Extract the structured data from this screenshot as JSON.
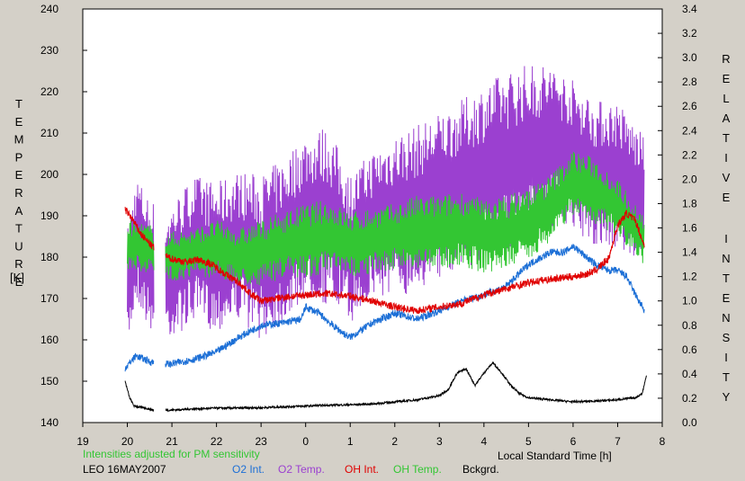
{
  "note": "Intensities adjusted for PM sensitivity",
  "station": "LEO 16MAY2007",
  "left_axis_title": "TEMPERATURE",
  "left_axis_unit": "[K]",
  "right_axis_title": "RELATIVE INTENSITY",
  "legend": [
    {
      "label": "O2 Int.",
      "color": "#1c6fd6"
    },
    {
      "label": "O2 Temp.",
      "color": "#9b40d0"
    },
    {
      "label": "OH Int.",
      "color": "#e00000"
    },
    {
      "label": "OH Temp.",
      "color": "#33c633"
    },
    {
      "label": "Bckgrd.",
      "color": "#000000"
    }
  ],
  "chart_data": {
    "type": "line",
    "xlabel": "Local Standard Time [h]",
    "x_tick_labels": [
      "19",
      "20",
      "21",
      "22",
      "23",
      "0",
      "1",
      "2",
      "3",
      "4",
      "5",
      "6",
      "7",
      "8"
    ],
    "xlim": [
      19,
      32
    ],
    "ylabel_left": "TEMPERATURE [K]",
    "ylim_left": [
      140,
      240
    ],
    "y_ticks_left": [
      140,
      150,
      160,
      170,
      180,
      190,
      200,
      210,
      220,
      230,
      240
    ],
    "ylabel_right": "RELATIVE INTENSITY",
    "ylim_right": [
      0.0,
      3.4
    ],
    "y_ticks_right": [
      "0.0",
      "0.2",
      "0.4",
      "0.6",
      "0.8",
      "1.0",
      "1.2",
      "1.4",
      "1.6",
      "1.8",
      "2.0",
      "2.2",
      "2.4",
      "2.6",
      "2.8",
      "3.0",
      "3.2",
      "3.4"
    ],
    "grid": false,
    "series": [
      {
        "name": "O2 Temp.",
        "axis": "left",
        "color": "#9b40d0",
        "x": [
          20.0,
          20.2,
          20.5,
          20.9,
          21.5,
          22.0,
          22.5,
          23.0,
          23.5,
          24.0,
          24.5,
          25.0,
          25.5,
          26.0,
          26.5,
          27.0,
          27.5,
          28.0,
          28.5,
          29.0,
          29.5,
          30.0,
          30.5,
          31.0,
          31.6
        ],
        "y": [
          172,
          185,
          178,
          176,
          182,
          180,
          183,
          180,
          184,
          190,
          190,
          182,
          188,
          190,
          192,
          195,
          198,
          200,
          203,
          205,
          207,
          205,
          200,
          200,
          193
        ],
        "amplitude": [
          15,
          15,
          16,
          16,
          18,
          18,
          18,
          20,
          20,
          20,
          22,
          18,
          18,
          20,
          20,
          20,
          20,
          22,
          22,
          22,
          20,
          18,
          18,
          18,
          16
        ]
      },
      {
        "name": "OH Temp.",
        "axis": "left",
        "color": "#33c633",
        "x": [
          20.0,
          20.5,
          20.9,
          21.5,
          22.0,
          22.5,
          23.0,
          23.5,
          24.0,
          24.5,
          25.0,
          25.5,
          26.0,
          26.5,
          27.0,
          27.5,
          28.0,
          28.5,
          29.0,
          29.5,
          30.0,
          30.5,
          31.0,
          31.6
        ],
        "y": [
          183,
          182,
          180,
          181,
          182,
          180,
          181,
          183,
          184,
          185,
          183,
          184,
          185,
          186,
          186,
          187,
          185,
          186,
          188,
          192,
          198,
          196,
          192,
          184
        ],
        "amplitude": [
          6,
          6,
          6,
          6,
          7,
          7,
          8,
          8,
          9,
          9,
          8,
          8,
          8,
          9,
          9,
          9,
          9,
          9,
          9,
          8,
          8,
          8,
          7,
          6
        ]
      },
      {
        "name": "OH Int.",
        "axis": "right",
        "color": "#e00000",
        "x": [
          19.95,
          20.1,
          20.3,
          20.55,
          20.95,
          21.3,
          21.6,
          21.9,
          22.2,
          22.5,
          22.8,
          23.0,
          23.5,
          24.0,
          24.5,
          25.0,
          25.5,
          26.0,
          26.5,
          27.0,
          27.5,
          28.0,
          28.5,
          29.0,
          29.5,
          30.0,
          30.3,
          30.5,
          30.8,
          31.0,
          31.2,
          31.4,
          31.6
        ],
        "y": [
          1.75,
          1.68,
          1.55,
          1.45,
          1.35,
          1.32,
          1.34,
          1.3,
          1.22,
          1.15,
          1.05,
          1.0,
          1.03,
          1.05,
          1.06,
          1.04,
          1.0,
          0.95,
          0.92,
          0.95,
          0.98,
          1.05,
          1.1,
          1.15,
          1.18,
          1.2,
          1.22,
          1.25,
          1.35,
          1.62,
          1.72,
          1.66,
          1.45
        ]
      },
      {
        "name": "O2 Int.",
        "axis": "right",
        "color": "#1c6fd6",
        "x": [
          19.95,
          20.2,
          20.5,
          20.95,
          21.5,
          22.0,
          22.5,
          23.0,
          23.5,
          23.9,
          24.0,
          24.3,
          24.6,
          24.9,
          25.0,
          25.5,
          26.0,
          26.5,
          27.0,
          27.5,
          28.0,
          28.5,
          29.0,
          29.5,
          29.8,
          30.0,
          30.5,
          30.8,
          31.0,
          31.2,
          31.4,
          31.6
        ],
        "y": [
          0.45,
          0.55,
          0.5,
          0.48,
          0.52,
          0.58,
          0.7,
          0.8,
          0.82,
          0.85,
          0.95,
          0.9,
          0.8,
          0.72,
          0.7,
          0.82,
          0.9,
          0.85,
          0.92,
          1.0,
          1.05,
          1.12,
          1.3,
          1.4,
          1.4,
          1.45,
          1.3,
          1.25,
          1.25,
          1.2,
          1.05,
          0.92
        ]
      },
      {
        "name": "Bckgrd.",
        "axis": "left",
        "color": "#000000",
        "x": [
          19.95,
          20.05,
          20.15,
          20.4,
          20.6,
          20.95,
          21.5,
          22.0,
          22.5,
          23.0,
          23.5,
          24.0,
          24.5,
          25.0,
          25.5,
          26.0,
          26.5,
          27.0,
          27.2,
          27.4,
          27.6,
          27.8,
          28.0,
          28.2,
          28.4,
          28.6,
          28.8,
          29.0,
          29.5,
          30.0,
          30.5,
          31.0,
          31.2,
          31.4,
          31.55,
          31.65
        ],
        "y": [
          150,
          146,
          144,
          143.5,
          143,
          143,
          143.3,
          143.5,
          143.5,
          143.6,
          143.8,
          144,
          144.2,
          144.3,
          144.5,
          145,
          145.5,
          146.5,
          148,
          152,
          153,
          149,
          152,
          154.5,
          152,
          149,
          147,
          146,
          145.5,
          145,
          145.2,
          145.5,
          145.8,
          146,
          147,
          151.5
        ]
      }
    ]
  }
}
